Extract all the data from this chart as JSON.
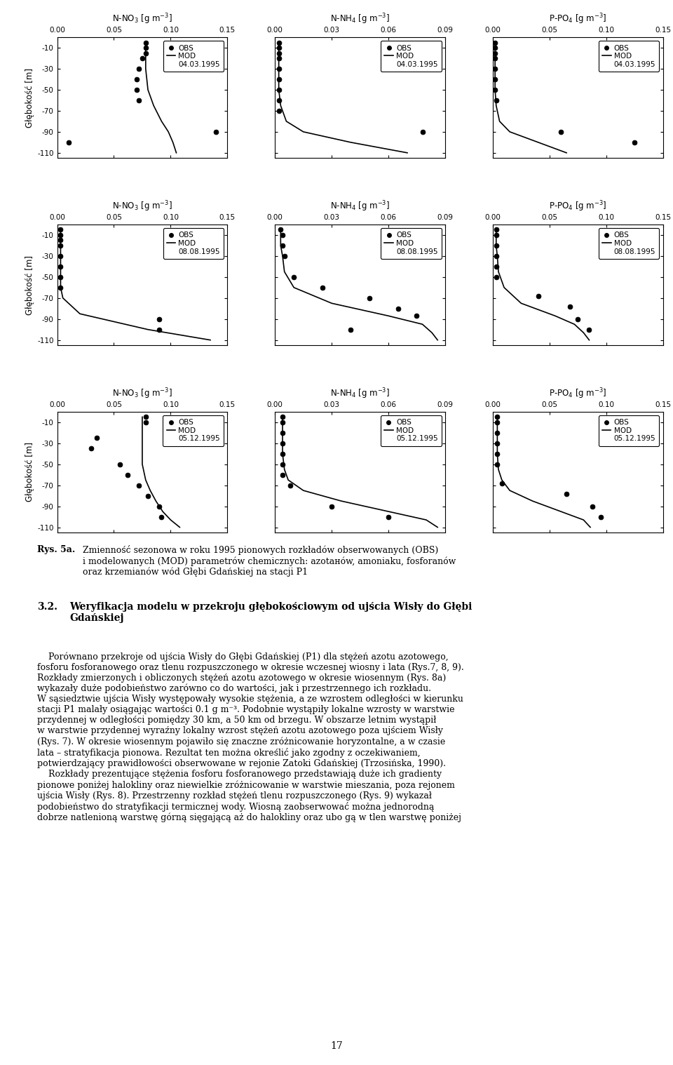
{
  "rows": [
    {
      "date": "04.03.1995",
      "ylabel": "Głębokość [m]",
      "panels": [
        {
          "title": "N-NO$_3$ [g m$^{-3}$]",
          "xlim": [
            0.0,
            0.15
          ],
          "xticks": [
            0.0,
            0.05,
            0.1,
            0.15
          ],
          "obs_x": [
            0.078,
            0.078,
            0.078,
            0.075,
            0.072,
            0.07,
            0.07,
            0.072,
            0.14,
            0.01
          ],
          "obs_y": [
            -5,
            -10,
            -15,
            -20,
            -30,
            -40,
            -50,
            -60,
            -90,
            -100
          ],
          "mod_x": [
            0.078,
            0.078,
            0.078,
            0.078,
            0.079,
            0.08,
            0.085,
            0.092,
            0.098,
            0.102,
            0.105
          ],
          "mod_y": [
            -5,
            -10,
            -20,
            -30,
            -40,
            -50,
            -65,
            -80,
            -90,
            -100,
            -110
          ]
        },
        {
          "title": "N-NH$_4$ [g m$^{-3}$]",
          "xlim": [
            0.0,
            0.09
          ],
          "xticks": [
            0.0,
            0.03,
            0.06,
            0.09
          ],
          "obs_x": [
            0.002,
            0.002,
            0.002,
            0.002,
            0.002,
            0.002,
            0.002,
            0.002,
            0.002,
            0.078
          ],
          "obs_y": [
            -5,
            -10,
            -15,
            -20,
            -30,
            -40,
            -50,
            -60,
            -70,
            -90
          ],
          "mod_x": [
            0.002,
            0.002,
            0.002,
            0.002,
            0.002,
            0.002,
            0.003,
            0.006,
            0.015,
            0.04,
            0.07
          ],
          "mod_y": [
            -5,
            -10,
            -20,
            -30,
            -40,
            -50,
            -65,
            -80,
            -90,
            -100,
            -110
          ]
        },
        {
          "title": "P-PO$_4$ [g m$^{-3}$]",
          "xlim": [
            0.0,
            0.15
          ],
          "xticks": [
            0.0,
            0.05,
            0.1,
            0.15
          ],
          "obs_x": [
            0.002,
            0.002,
            0.002,
            0.002,
            0.002,
            0.002,
            0.002,
            0.003,
            0.06,
            0.125
          ],
          "obs_y": [
            -5,
            -10,
            -15,
            -20,
            -30,
            -40,
            -50,
            -60,
            -90,
            -100
          ],
          "mod_x": [
            0.002,
            0.002,
            0.002,
            0.002,
            0.002,
            0.002,
            0.003,
            0.006,
            0.015,
            0.04,
            0.065
          ],
          "mod_y": [
            -5,
            -10,
            -20,
            -30,
            -40,
            -50,
            -65,
            -80,
            -90,
            -100,
            -110
          ]
        }
      ]
    },
    {
      "date": "08.08.1995",
      "ylabel": "Głębokość [m]",
      "panels": [
        {
          "title": "N-NO$_3$ [g m$^{-3}$]",
          "xlim": [
            0.0,
            0.15
          ],
          "xticks": [
            0.0,
            0.05,
            0.1,
            0.15
          ],
          "obs_x": [
            0.003,
            0.003,
            0.003,
            0.003,
            0.003,
            0.003,
            0.003,
            0.003,
            0.09,
            0.09
          ],
          "obs_y": [
            -5,
            -10,
            -15,
            -20,
            -30,
            -40,
            -50,
            -60,
            -90,
            -100
          ],
          "mod_x": [
            0.003,
            0.003,
            0.003,
            0.003,
            0.003,
            0.003,
            0.003,
            0.005,
            0.02,
            0.08,
            0.135
          ],
          "mod_y": [
            -5,
            -10,
            -20,
            -30,
            -40,
            -50,
            -60,
            -70,
            -85,
            -100,
            -110
          ]
        },
        {
          "title": "N-NH$_4$ [g m$^{-3}$]",
          "xlim": [
            0.0,
            0.09
          ],
          "xticks": [
            0.0,
            0.03,
            0.06,
            0.09
          ],
          "obs_x": [
            0.003,
            0.004,
            0.004,
            0.005,
            0.01,
            0.025,
            0.05,
            0.065,
            0.075,
            0.04
          ],
          "obs_y": [
            -5,
            -10,
            -20,
            -30,
            -50,
            -60,
            -70,
            -80,
            -87,
            -100
          ],
          "mod_x": [
            0.003,
            0.003,
            0.003,
            0.004,
            0.005,
            0.01,
            0.03,
            0.06,
            0.078,
            0.083,
            0.086
          ],
          "mod_y": [
            -5,
            -10,
            -20,
            -30,
            -45,
            -60,
            -75,
            -87,
            -95,
            -103,
            -110
          ]
        },
        {
          "title": "P-PO$_4$ [g m$^{-3}$]",
          "xlim": [
            0.0,
            0.15
          ],
          "xticks": [
            0.0,
            0.05,
            0.1,
            0.15
          ],
          "obs_x": [
            0.003,
            0.003,
            0.003,
            0.003,
            0.003,
            0.003,
            0.04,
            0.068,
            0.075,
            0.085
          ],
          "obs_y": [
            -5,
            -10,
            -20,
            -30,
            -40,
            -50,
            -68,
            -78,
            -90,
            -100
          ],
          "mod_x": [
            0.003,
            0.003,
            0.003,
            0.004,
            0.005,
            0.01,
            0.025,
            0.055,
            0.072,
            0.08,
            0.085
          ],
          "mod_y": [
            -5,
            -10,
            -20,
            -30,
            -45,
            -60,
            -75,
            -87,
            -95,
            -103,
            -110
          ]
        }
      ]
    },
    {
      "date": "05.12.1995",
      "ylabel": "Głębokość [m]",
      "panels": [
        {
          "title": "N-NO$_3$ [g m$^{-3}$]",
          "xlim": [
            0.0,
            0.15
          ],
          "xticks": [
            0.0,
            0.05,
            0.1,
            0.15
          ],
          "obs_x": [
            0.078,
            0.078,
            0.035,
            0.03,
            0.055,
            0.062,
            0.072,
            0.08,
            0.09,
            0.092
          ],
          "obs_y": [
            -5,
            -10,
            -25,
            -35,
            -50,
            -60,
            -70,
            -80,
            -90,
            -100
          ],
          "mod_x": [
            0.075,
            0.075,
            0.075,
            0.075,
            0.075,
            0.075,
            0.078,
            0.082,
            0.087,
            0.093,
            0.1,
            0.108
          ],
          "mod_y": [
            -5,
            -10,
            -20,
            -30,
            -40,
            -50,
            -65,
            -75,
            -85,
            -95,
            -103,
            -110
          ]
        },
        {
          "title": "N-NH$_4$ [g m$^{-3}$]",
          "xlim": [
            0.0,
            0.09
          ],
          "xticks": [
            0.0,
            0.03,
            0.06,
            0.09
          ],
          "obs_x": [
            0.004,
            0.004,
            0.004,
            0.004,
            0.004,
            0.004,
            0.004,
            0.008,
            0.03,
            0.06
          ],
          "obs_y": [
            -5,
            -10,
            -20,
            -30,
            -40,
            -50,
            -60,
            -70,
            -90,
            -100
          ],
          "mod_x": [
            0.004,
            0.004,
            0.004,
            0.004,
            0.004,
            0.005,
            0.007,
            0.015,
            0.035,
            0.06,
            0.08,
            0.086
          ],
          "mod_y": [
            -5,
            -10,
            -20,
            -30,
            -40,
            -55,
            -65,
            -75,
            -85,
            -95,
            -103,
            -110
          ]
        },
        {
          "title": "P-PO$_4$ [g m$^{-3}$]",
          "xlim": [
            0.0,
            0.15
          ],
          "xticks": [
            0.0,
            0.05,
            0.1,
            0.15
          ],
          "obs_x": [
            0.004,
            0.004,
            0.004,
            0.004,
            0.004,
            0.004,
            0.008,
            0.065,
            0.088,
            0.095
          ],
          "obs_y": [
            -5,
            -10,
            -20,
            -30,
            -40,
            -50,
            -68,
            -78,
            -90,
            -100
          ],
          "mod_x": [
            0.004,
            0.004,
            0.004,
            0.004,
            0.004,
            0.005,
            0.008,
            0.015,
            0.035,
            0.06,
            0.08,
            0.086
          ],
          "mod_y": [
            -5,
            -10,
            -20,
            -30,
            -40,
            -55,
            -65,
            -75,
            -85,
            -95,
            -103,
            -110
          ]
        }
      ]
    }
  ],
  "ylim": [
    -115,
    0
  ],
  "yticks": [
    -10,
    -30,
    -50,
    -70,
    -90,
    -110
  ],
  "yticklabels": [
    "-10",
    "-30",
    "-50",
    "-70",
    "-90",
    "-110"
  ],
  "obs_color": "black",
  "mod_color": "black",
  "mod_linewidth": 1.2,
  "obs_markersize": 5,
  "tick_fontsize": 7.5,
  "label_fontsize": 8.5,
  "legend_fontsize": 7.5
}
